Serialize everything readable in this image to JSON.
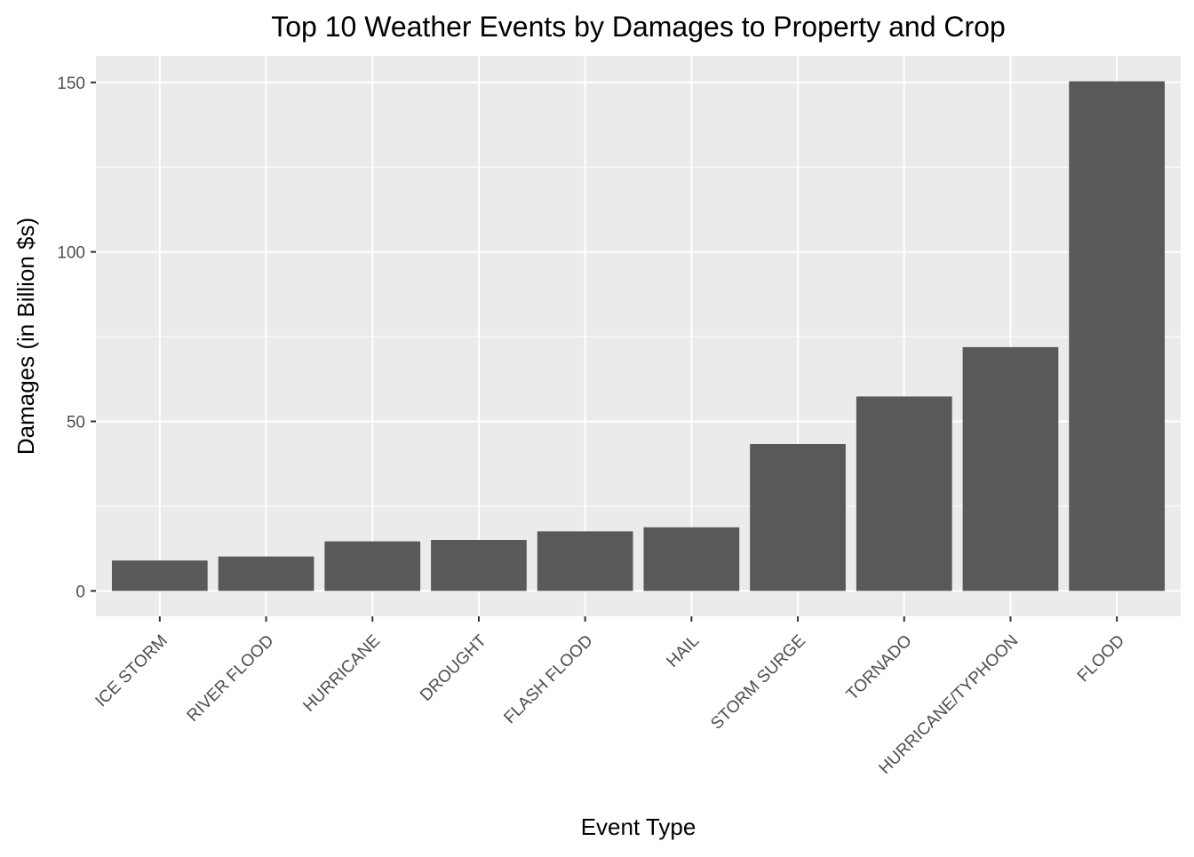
{
  "chart_data": {
    "type": "bar",
    "title": "Top 10 Weather Events by Damages to Property and Crop",
    "xlabel": "Event Type",
    "ylabel": "Damages (in Billion $s)",
    "categories": [
      "ICE STORM",
      "RIVER FLOOD",
      "HURRICANE",
      "DROUGHT",
      "FLASH FLOOD",
      "HAIL",
      "STORM SURGE",
      "TORNADO",
      "HURRICANE/TYPHOON",
      "FLOOD"
    ],
    "values": [
      8.97,
      10.15,
      14.61,
      15.02,
      17.56,
      18.76,
      43.32,
      57.35,
      71.91,
      150.32
    ],
    "ylim": [
      -7.5,
      157.8
    ],
    "yticks": [
      0,
      50,
      100,
      150
    ],
    "grid": true,
    "legend": "none",
    "colors": {
      "panel": "#ebebeb",
      "bar": "#595959",
      "grid": "#ffffff",
      "text": "#4d4d4d",
      "title": "#000000"
    }
  }
}
